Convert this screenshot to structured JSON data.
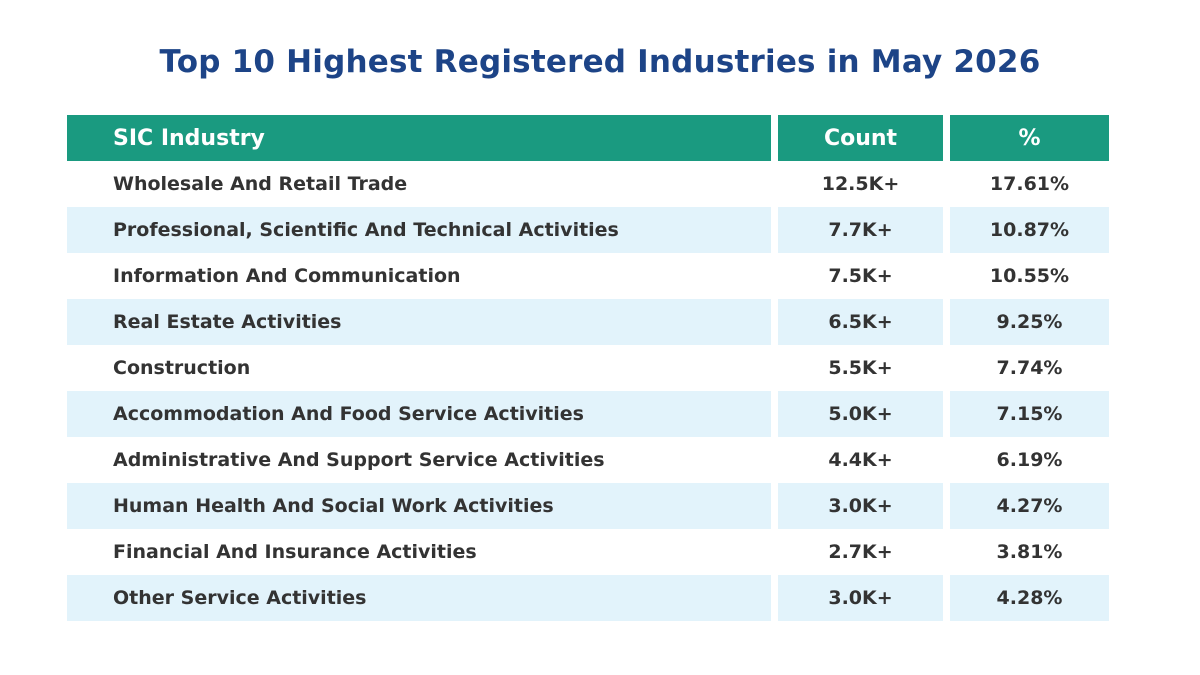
{
  "title": "Top 10 Highest Registered Industries in May 2026",
  "colors": {
    "title": "#1d4487",
    "header_bg": "#1a9a80",
    "header_text": "#ffffff",
    "row_shade": "#e2f3fb",
    "row_text": "#333333"
  },
  "chart_data": {
    "type": "table",
    "title": "Top 10 Highest Registered Industries in May 2026",
    "columns": [
      "SIC Industry",
      "Count",
      "%"
    ],
    "rows": [
      {
        "industry": "Wholesale And Retail Trade",
        "count": "12.5K+",
        "pct": "17.61%"
      },
      {
        "industry": "Professional, Scientific And Technical Activities",
        "count": "7.7K+",
        "pct": "10.87%"
      },
      {
        "industry": "Information And Communication",
        "count": "7.5K+",
        "pct": "10.55%"
      },
      {
        "industry": "Real Estate Activities",
        "count": "6.5K+",
        "pct": "9.25%"
      },
      {
        "industry": "Construction",
        "count": "5.5K+",
        "pct": "7.74%"
      },
      {
        "industry": "Accommodation And Food Service Activities",
        "count": "5.0K+",
        "pct": "7.15%"
      },
      {
        "industry": "Administrative And Support Service Activities",
        "count": "4.4K+",
        "pct": "6.19%"
      },
      {
        "industry": "Human Health And Social Work Activities",
        "count": "3.0K+",
        "pct": "4.27%"
      },
      {
        "industry": "Financial And Insurance Activities",
        "count": "2.7K+",
        "pct": "3.81%"
      },
      {
        "industry": "Other Service Activities",
        "count": "3.0K+",
        "pct": "4.28%"
      }
    ]
  }
}
